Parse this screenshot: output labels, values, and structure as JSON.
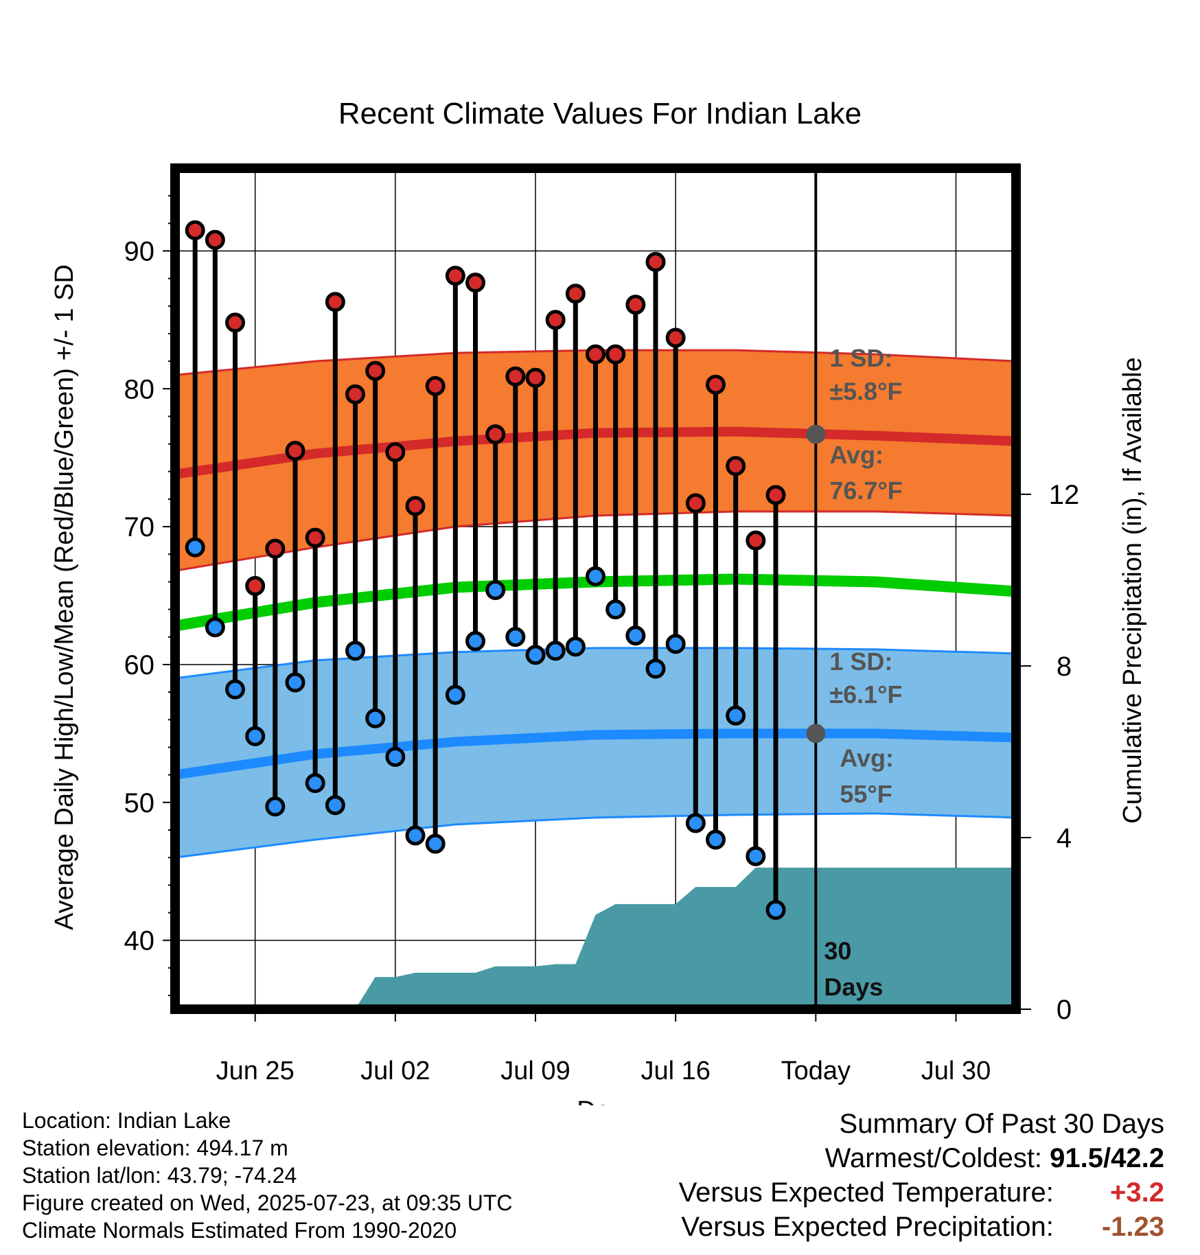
{
  "chart_data": {
    "type": "line",
    "title": "Recent Climate Values For Indian Lake",
    "xlabel": "Day",
    "ylabel": "Average Daily High/Low/Mean (Red/Blue/Green) +/- 1 SD",
    "y2label": "Cumulative Precipitation (in), If Available",
    "xlim": [
      "2025-06-21",
      "2025-08-02"
    ],
    "ylim": [
      35,
      96
    ],
    "y2lim": [
      0,
      19.6
    ],
    "x_ticks": [
      {
        "date": "2025-06-25",
        "label": "Jun 25"
      },
      {
        "date": "2025-07-02",
        "label": "Jul 02"
      },
      {
        "date": "2025-07-09",
        "label": "Jul 09"
      },
      {
        "date": "2025-07-16",
        "label": "Jul 16"
      },
      {
        "date": "2025-07-23",
        "label": "Today"
      },
      {
        "date": "2025-07-30",
        "label": "Jul 30"
      }
    ],
    "y_ticks": [
      40,
      50,
      60,
      70,
      80,
      90
    ],
    "y2_ticks": [
      0,
      4,
      8,
      12
    ],
    "grid": true,
    "today": "2025-07-23",
    "period_label": "30 Days",
    "daily_dates": [
      "2025-06-22",
      "2025-06-23",
      "2025-06-24",
      "2025-06-25",
      "2025-06-26",
      "2025-06-27",
      "2025-06-28",
      "2025-06-29",
      "2025-06-30",
      "2025-07-01",
      "2025-07-02",
      "2025-07-03",
      "2025-07-04",
      "2025-07-05",
      "2025-07-06",
      "2025-07-07",
      "2025-07-08",
      "2025-07-09",
      "2025-07-10",
      "2025-07-11",
      "2025-07-12",
      "2025-07-13",
      "2025-07-14",
      "2025-07-15",
      "2025-07-16",
      "2025-07-17",
      "2025-07-18",
      "2025-07-19",
      "2025-07-20",
      "2025-07-21",
      "2025-07-22"
    ],
    "series": [
      {
        "name": "High",
        "color": "#d42a2a",
        "values": [
          91.5,
          90.8,
          84.8,
          65.7,
          68.4,
          75.5,
          69.2,
          86.3,
          79.6,
          81.3,
          75.4,
          71.5,
          80.2,
          88.2,
          87.7,
          76.7,
          80.9,
          80.8,
          85.0,
          86.9,
          82.5,
          82.5,
          86.1,
          89.2,
          83.7,
          71.7,
          80.3,
          74.4,
          69.0,
          72.3,
          null
        ]
      },
      {
        "name": "Low",
        "color": "#2b8ff5",
        "values": [
          68.5,
          62.7,
          58.2,
          54.8,
          49.7,
          58.7,
          51.4,
          49.8,
          61.0,
          56.1,
          53.3,
          47.6,
          47.0,
          57.8,
          61.7,
          65.4,
          62.0,
          60.7,
          61.0,
          61.3,
          66.4,
          64.0,
          62.1,
          59.7,
          61.5,
          48.5,
          47.3,
          56.3,
          46.1,
          42.2,
          null
        ]
      }
    ],
    "normals": {
      "dates": [
        "2025-06-21",
        "2025-06-28",
        "2025-07-05",
        "2025-07-12",
        "2025-07-19",
        "2025-07-26",
        "2025-08-02"
      ],
      "high_mean": [
        73.8,
        75.3,
        76.2,
        76.8,
        76.9,
        76.6,
        76.2
      ],
      "high_upper": [
        81.0,
        82.0,
        82.6,
        82.8,
        82.8,
        82.5,
        82.0
      ],
      "high_lower": [
        66.8,
        68.5,
        70.0,
        70.8,
        71.1,
        71.1,
        70.8
      ],
      "low_mean": [
        52.0,
        53.5,
        54.4,
        54.9,
        55.0,
        55.0,
        54.7
      ],
      "low_upper": [
        59.0,
        60.3,
        60.9,
        61.2,
        61.2,
        61.1,
        60.8
      ],
      "low_lower": [
        46.0,
        47.3,
        48.4,
        48.9,
        49.1,
        49.2,
        48.9
      ],
      "mean": [
        62.8,
        64.5,
        65.6,
        66.0,
        66.2,
        66.0,
        65.3
      ],
      "high_colors": {
        "band": "#f47b2f",
        "mean": "#d42a2a"
      },
      "low_colors": {
        "band": "#7bbde8",
        "mean": "#1e8aff"
      },
      "mean_color": "#00cc00"
    },
    "normal_labels": {
      "high_sd": "1 SD:",
      "high_sd_value": "±5.8°F",
      "high_avg": "Avg:",
      "high_avg_value": "76.7°F",
      "low_sd": "1 SD:",
      "low_sd_value": "±6.1°F",
      "low_avg": "Avg:",
      "low_avg_value": "55°F",
      "today_high": 76.7,
      "today_low": 55.0
    },
    "precipitation": {
      "color": "#4a9aa5",
      "steps": [
        {
          "date": "2025-06-22",
          "value": 0
        },
        {
          "date": "2025-06-30",
          "value": 0
        },
        {
          "date": "2025-07-01",
          "value": 0.75
        },
        {
          "date": "2025-07-02",
          "value": 0.75
        },
        {
          "date": "2025-07-03",
          "value": 0.85
        },
        {
          "date": "2025-07-06",
          "value": 0.85
        },
        {
          "date": "2025-07-07",
          "value": 1.0
        },
        {
          "date": "2025-07-09",
          "value": 1.0
        },
        {
          "date": "2025-07-10",
          "value": 1.05
        },
        {
          "date": "2025-07-11",
          "value": 1.05
        },
        {
          "date": "2025-07-12",
          "value": 2.2
        },
        {
          "date": "2025-07-13",
          "value": 2.45
        },
        {
          "date": "2025-07-16",
          "value": 2.45
        },
        {
          "date": "2025-07-17",
          "value": 2.85
        },
        {
          "date": "2025-07-19",
          "value": 2.85
        },
        {
          "date": "2025-07-20",
          "value": 3.3
        },
        {
          "date": "2025-08-02",
          "value": 3.3
        }
      ]
    }
  },
  "footer": {
    "location": "Location: Indian Lake",
    "elevation": "Station elevation: 494.17 m",
    "latlon": "Station lat/lon: 43.79; -74.24",
    "created": "Figure created on Wed, 2025-07-23, at 09:35 UTC",
    "normals": "Climate Normals Estimated From 1990-2020"
  },
  "summary": {
    "heading": "Summary Of Past 30 Days",
    "warmest_coldest_label": "Warmest/Coldest:",
    "warmest_coldest_value": "91.5/42.2",
    "temp_label": "Versus Expected Temperature:",
    "temp_value": "+3.2",
    "temp_color": "#d42a2a",
    "precip_label": "Versus Expected Precipitation:",
    "precip_value": "-1.23",
    "precip_color": "#a0522d"
  }
}
